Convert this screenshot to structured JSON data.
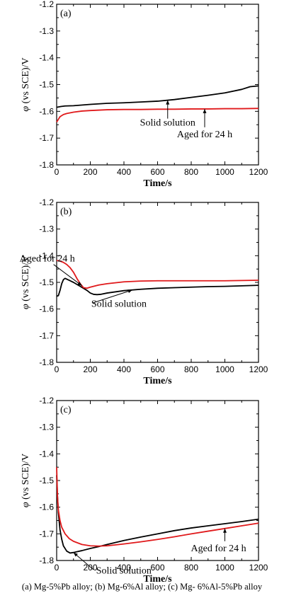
{
  "caption": "(a) Mg-5%Pb alloy; (b) Mg-6%Al alloy; (c) Mg- 6%Al-5%Pb alloy",
  "colors": {
    "solid_solution": "#000000",
    "aged": "#e0191b"
  },
  "chart_data": [
    {
      "type": "line",
      "panel_label": "(a)",
      "xlabel": "Time/s",
      "ylabel_prefix": "φ",
      "ylabel_suffix": " (vs SCE)/V",
      "xlim": [
        0,
        1200
      ],
      "ylim": [
        -1.8,
        -1.2
      ],
      "x_ticks": [
        "0",
        "200",
        "400",
        "600",
        "800",
        "1000",
        "1200"
      ],
      "y_ticks": [
        "-1.8",
        "-1.7",
        "-1.6",
        "-1.5",
        "-1.4",
        "-1.3",
        "-1.2"
      ],
      "grid": false,
      "series": [
        {
          "name": "Solid solution",
          "color": "#000000",
          "x": [
            0,
            25,
            50,
            100,
            200,
            300,
            400,
            500,
            600,
            700,
            800,
            900,
            1000,
            1100,
            1150,
            1200
          ],
          "y": [
            -1.585,
            -1.582,
            -1.58,
            -1.579,
            -1.574,
            -1.57,
            -1.568,
            -1.565,
            -1.562,
            -1.556,
            -1.548,
            -1.54,
            -1.531,
            -1.518,
            -1.508,
            -1.505
          ]
        },
        {
          "name": "Aged for 24 h",
          "color": "#e0191b",
          "x": [
            0,
            10,
            20,
            40,
            60,
            100,
            150,
            200,
            300,
            400,
            500,
            600,
            700,
            800,
            900,
            1000,
            1100,
            1200
          ],
          "y": [
            -1.64,
            -1.63,
            -1.62,
            -1.612,
            -1.608,
            -1.603,
            -1.599,
            -1.597,
            -1.594,
            -1.593,
            -1.593,
            -1.592,
            -1.592,
            -1.591,
            -1.591,
            -1.59,
            -1.59,
            -1.589
          ]
        }
      ],
      "annotations": [
        {
          "text": "Solid solution",
          "series": "Solid solution",
          "x": 660
        },
        {
          "text": "Aged for 24 h",
          "series": "Aged for 24 h",
          "x": 880
        }
      ]
    },
    {
      "type": "line",
      "panel_label": "(b)",
      "xlabel": "Time/s",
      "ylabel_prefix": "φ",
      "ylabel_suffix": " (vs SCE)/V",
      "xlim": [
        0,
        1200
      ],
      "ylim": [
        -1.8,
        -1.2
      ],
      "x_ticks": [
        "0",
        "200",
        "400",
        "600",
        "800",
        "1000",
        "1200"
      ],
      "y_ticks": [
        "-1.8",
        "-1.7",
        "-1.6",
        "-1.5",
        "-1.4",
        "-1.3",
        "-1.2"
      ],
      "grid": false,
      "series": [
        {
          "name": "Solid solution",
          "color": "#000000",
          "x": [
            0,
            10,
            20,
            30,
            40,
            50,
            60,
            80,
            100,
            140,
            180,
            200,
            220,
            240,
            260,
            300,
            400,
            500,
            600,
            700,
            800,
            900,
            1000,
            1100,
            1200
          ],
          "y": [
            -1.552,
            -1.55,
            -1.53,
            -1.505,
            -1.49,
            -1.485,
            -1.488,
            -1.494,
            -1.5,
            -1.515,
            -1.53,
            -1.54,
            -1.545,
            -1.546,
            -1.545,
            -1.54,
            -1.531,
            -1.526,
            -1.522,
            -1.52,
            -1.518,
            -1.516,
            -1.515,
            -1.513,
            -1.511
          ]
        },
        {
          "name": "Aged for 24 h",
          "color": "#e0191b",
          "x": [
            0,
            20,
            40,
            60,
            80,
            100,
            120,
            140,
            160,
            180,
            200,
            250,
            300,
            400,
            500,
            600,
            700,
            800,
            900,
            1000,
            1100,
            1200
          ],
          "y": [
            -1.418,
            -1.42,
            -1.425,
            -1.433,
            -1.445,
            -1.462,
            -1.485,
            -1.505,
            -1.52,
            -1.522,
            -1.518,
            -1.51,
            -1.505,
            -1.498,
            -1.495,
            -1.494,
            -1.494,
            -1.494,
            -1.494,
            -1.494,
            -1.493,
            -1.492
          ]
        }
      ],
      "annotations": [
        {
          "text": "Aged for 24 h",
          "series": "Aged for 24 h",
          "x": 150
        },
        {
          "text": "Solid solution",
          "series": "Solid solution",
          "x": 450
        }
      ]
    },
    {
      "type": "line",
      "panel_label": "(c)",
      "xlabel": "Time/s",
      "ylabel_prefix": "φ",
      "ylabel_suffix": " (vs SCE)/V",
      "xlim": [
        0,
        1200
      ],
      "ylim": [
        -1.8,
        -1.2
      ],
      "x_ticks": [
        "0",
        "200",
        "400",
        "600",
        "800",
        "1000",
        "1200"
      ],
      "y_ticks": [
        "-1.8",
        "-1.7",
        "-1.6",
        "-1.5",
        "-1.4",
        "-1.3",
        "-1.2"
      ],
      "grid": false,
      "series": [
        {
          "name": "Solid solution",
          "color": "#000000",
          "x": [
            0,
            5,
            10,
            20,
            30,
            40,
            60,
            80,
            100,
            120,
            150,
            200,
            250,
            300,
            400,
            500,
            600,
            700,
            800,
            900,
            1000,
            1100,
            1200
          ],
          "y": [
            -1.48,
            -1.56,
            -1.62,
            -1.685,
            -1.72,
            -1.745,
            -1.765,
            -1.772,
            -1.77,
            -1.767,
            -1.763,
            -1.755,
            -1.748,
            -1.74,
            -1.725,
            -1.712,
            -1.7,
            -1.688,
            -1.678,
            -1.67,
            -1.662,
            -1.654,
            -1.645
          ]
        },
        {
          "name": "Aged for 24 h",
          "color": "#e0191b",
          "x": [
            0,
            5,
            10,
            20,
            30,
            50,
            75,
            100,
            150,
            200,
            250,
            300,
            400,
            500,
            600,
            700,
            800,
            900,
            1000,
            1100,
            1200
          ],
          "y": [
            -1.45,
            -1.56,
            -1.61,
            -1.65,
            -1.675,
            -1.7,
            -1.718,
            -1.728,
            -1.74,
            -1.745,
            -1.746,
            -1.745,
            -1.738,
            -1.73,
            -1.721,
            -1.711,
            -1.7,
            -1.69,
            -1.68,
            -1.67,
            -1.66
          ]
        }
      ],
      "annotations": [
        {
          "text": "Solid solution",
          "series": "Solid solution",
          "x": 100
        },
        {
          "text": "Aged for 24 h",
          "series": "Aged for 24 h",
          "x": 1000
        }
      ]
    }
  ]
}
